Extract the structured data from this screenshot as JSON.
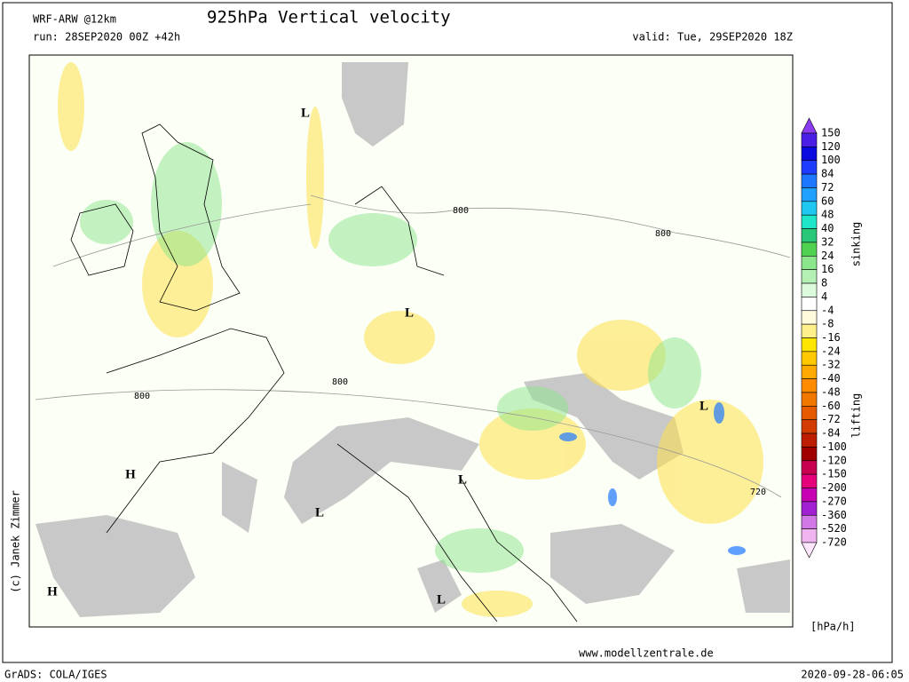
{
  "header": {
    "model": "WRF-ARW @12km",
    "run": "run: 28SEP2020 00Z +42h",
    "title": "925hPa Vertical velocity",
    "valid": "valid: Tue, 29SEP2020 18Z"
  },
  "legend": {
    "levels": [
      150,
      120,
      100,
      84,
      72,
      60,
      48,
      40,
      32,
      24,
      16,
      8,
      4,
      -4,
      -8,
      -16,
      -24,
      -32,
      -40,
      -48,
      -60,
      -72,
      -84,
      -100,
      -120,
      -150,
      -200,
      -270,
      -360,
      -520,
      -720
    ],
    "colors": [
      "#8c3cf0",
      "#4b1ee6",
      "#0a0ae0",
      "#1e3cff",
      "#1e78ff",
      "#20a0ff",
      "#1ec8f0",
      "#1ee6c8",
      "#28c878",
      "#50d250",
      "#8ce68c",
      "#b4f0b4",
      "#dcfadc",
      "#ffffff",
      "#fffadc",
      "#fff08c",
      "#ffe600",
      "#ffc800",
      "#ffaa00",
      "#ff8c00",
      "#f07800",
      "#e65a00",
      "#d23c00",
      "#be1e00",
      "#a00000",
      "#c80050",
      "#e6007a",
      "#c800b4",
      "#a020d2",
      "#d278e6",
      "#f0b4f0",
      "#ffe6ff"
    ],
    "upper_label": "sinking",
    "lower_label": "lifting",
    "unit": "[hPa/h]"
  },
  "map": {
    "pressure_centers": [
      "L",
      "L",
      "L",
      "L",
      "L",
      "L",
      "H",
      "H"
    ],
    "contour_labels": [
      800,
      800,
      800,
      800,
      720
    ]
  },
  "footer": {
    "copyright": "(c) Janek Zimmer",
    "website": "www.modellzentrale.de",
    "software": "GrADS: COLA/IGES",
    "timestamp": "2020-09-28-06:05"
  }
}
